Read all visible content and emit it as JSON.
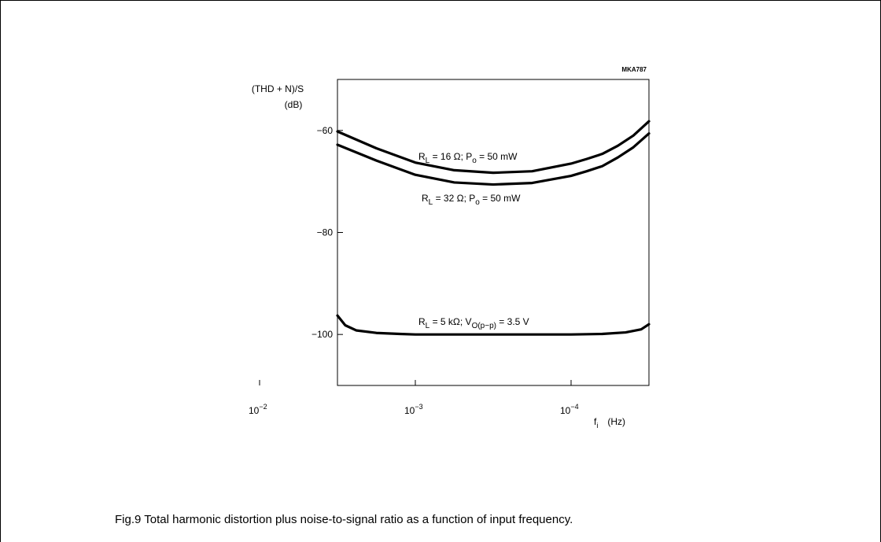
{
  "figure": {
    "code": "MKA787",
    "caption": "Fig.9  Total harmonic distortion plus noise-to-signal ratio as a function of input frequency."
  },
  "chart_data": {
    "type": "line",
    "ylabel_line1": "(THD + N)/S",
    "ylabel_line2": "(dB)",
    "xlabel_symbol": "f",
    "xlabel_sub": "i",
    "xlabel_unit": "(Hz)",
    "ylim": [
      -110,
      -50
    ],
    "xlim_log": [
      -2.5,
      -4.5
    ],
    "yticks": [
      {
        "value": -60,
        "label": "−60"
      },
      {
        "value": -80,
        "label": "−80"
      },
      {
        "value": -100,
        "label": "−100"
      }
    ],
    "xticks": [
      {
        "value": -2,
        "base": "10",
        "exp": "−2"
      },
      {
        "value": -3,
        "base": "10",
        "exp": "−3"
      },
      {
        "value": -4,
        "base": "10",
        "exp": "−4"
      }
    ],
    "grid": false,
    "series": [
      {
        "label_pre": "R",
        "label_sub1": "L",
        "label_mid": " = 16 Ω; P",
        "label_sub2": "o",
        "label_post": " = 50 mW",
        "x": [
          -2.5,
          -2.75,
          -3.0,
          -3.25,
          -3.5,
          -3.75,
          -4.0,
          -4.1,
          -4.2,
          -4.3,
          -4.4,
          -4.5
        ],
        "y": [
          -60.2,
          -63.5,
          -66.3,
          -67.8,
          -68.3,
          -68.0,
          -66.5,
          -65.6,
          -64.6,
          -63.0,
          -61.0,
          -58.2
        ]
      },
      {
        "label_pre": "R",
        "label_sub1": "L",
        "label_mid": " = 32 Ω; P",
        "label_sub2": "o",
        "label_post": " = 50 mW",
        "x": [
          -2.5,
          -2.75,
          -3.0,
          -3.25,
          -3.5,
          -3.75,
          -4.0,
          -4.1,
          -4.2,
          -4.3,
          -4.4,
          -4.5
        ],
        "y": [
          -62.8,
          -65.9,
          -68.7,
          -70.2,
          -70.6,
          -70.3,
          -68.9,
          -68.0,
          -67.0,
          -65.3,
          -63.3,
          -60.6
        ]
      },
      {
        "label_pre": "R",
        "label_sub1": "L",
        "label_mid": " = 5 kΩ; V",
        "label_sub2": "O(p−p)",
        "label_post": " = 3.5 V",
        "x": [
          -2.5,
          -2.55,
          -2.62,
          -2.75,
          -2.9,
          -3.0,
          -3.5,
          -4.0,
          -4.2,
          -4.35,
          -4.45,
          -4.5
        ],
        "y": [
          -96.3,
          -98.2,
          -99.2,
          -99.7,
          -99.9,
          -100.0,
          -100.0,
          -100.0,
          -99.9,
          -99.6,
          -99.0,
          -98.0
        ]
      }
    ]
  }
}
